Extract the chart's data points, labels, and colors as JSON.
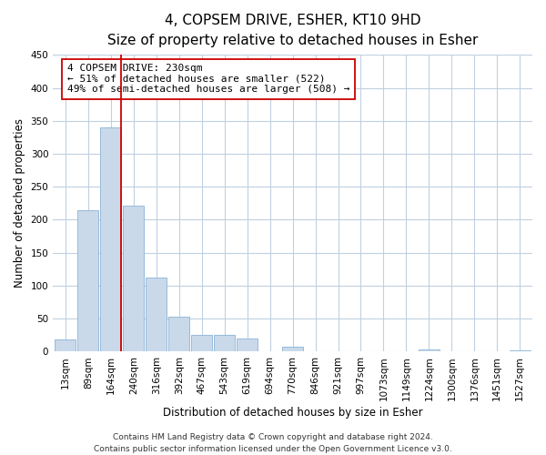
{
  "title": "4, COPSEM DRIVE, ESHER, KT10 9HD",
  "subtitle": "Size of property relative to detached houses in Esher",
  "xlabel": "Distribution of detached houses by size in Esher",
  "ylabel": "Number of detached properties",
  "bar_labels": [
    "13sqm",
    "89sqm",
    "164sqm",
    "240sqm",
    "316sqm",
    "392sqm",
    "467sqm",
    "543sqm",
    "619sqm",
    "694sqm",
    "770sqm",
    "846sqm",
    "921sqm",
    "997sqm",
    "1073sqm",
    "1149sqm",
    "1224sqm",
    "1300sqm",
    "1376sqm",
    "1451sqm",
    "1527sqm"
  ],
  "bar_values": [
    18,
    215,
    340,
    222,
    113,
    53,
    26,
    25,
    20,
    0,
    7,
    0,
    0,
    0,
    0,
    0,
    3,
    0,
    0,
    0,
    2
  ],
  "bar_color": "#c9d9ea",
  "bar_edge_color": "#8ab4d4",
  "highlight_line_index": 2,
  "highlight_line_color": "#cc0000",
  "annotation_title": "4 COPSEM DRIVE: 230sqm",
  "annotation_line1": "← 51% of detached houses are smaller (522)",
  "annotation_line2": "49% of semi-detached houses are larger (508) →",
  "annotation_box_color": "#ffffff",
  "annotation_box_edge": "#cc0000",
  "ylim": [
    0,
    450
  ],
  "yticks": [
    0,
    50,
    100,
    150,
    200,
    250,
    300,
    350,
    400,
    450
  ],
  "footer1": "Contains HM Land Registry data © Crown copyright and database right 2024.",
  "footer2": "Contains public sector information licensed under the Open Government Licence v3.0.",
  "background_color": "#ffffff",
  "grid_color": "#c0d0e0",
  "title_fontsize": 11,
  "subtitle_fontsize": 9,
  "axis_label_fontsize": 8.5,
  "tick_fontsize": 7.5,
  "footer_fontsize": 6.5
}
